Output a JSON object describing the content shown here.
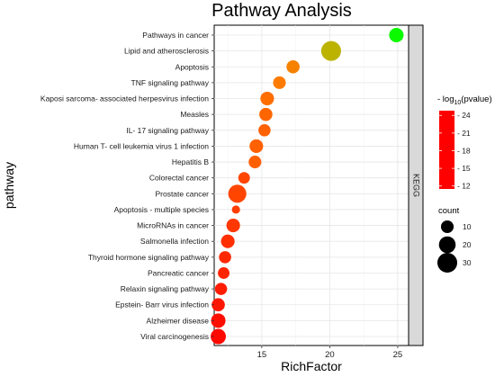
{
  "chart_data": {
    "type": "scatter",
    "title": "Pathway Analysis",
    "xlabel": "RichFactor",
    "ylabel": "pathway",
    "facet_label": "KEGG",
    "xlim": [
      11.5,
      25.8
    ],
    "xticks": [
      15,
      20,
      25
    ],
    "grid": true,
    "legend_placement": "right",
    "color_legend": {
      "title_prefix": "- log",
      "title_sub": "10",
      "title_suffix": "(pvalue)",
      "ticks": [
        12,
        15,
        18,
        21,
        24
      ],
      "range": [
        11.5,
        24.8
      ],
      "colors": [
        "#ff0000",
        "#ff7a00",
        "#b5b800",
        "#00ff00"
      ]
    },
    "size_legend": {
      "title": "count",
      "values": [
        10,
        20,
        30
      ]
    },
    "points": [
      {
        "pathway": "Pathways in cancer",
        "richfactor": 24.9,
        "neglog10p": 24.5,
        "count": 14
      },
      {
        "pathway": "Lipid and atherosclerosis",
        "richfactor": 20.1,
        "neglog10p": 20.0,
        "count": 30
      },
      {
        "pathway": "Apoptosis",
        "richfactor": 17.3,
        "neglog10p": 16.5,
        "count": 11
      },
      {
        "pathway": "TNF signaling pathway",
        "richfactor": 16.3,
        "neglog10p": 16.0,
        "count": 10
      },
      {
        "pathway": "Kaposi sarcoma- associated herpesvirus infection",
        "richfactor": 15.4,
        "neglog10p": 15.5,
        "count": 12
      },
      {
        "pathway": "Measles",
        "richfactor": 15.3,
        "neglog10p": 15.2,
        "count": 11
      },
      {
        "pathway": "IL- 17 signaling pathway",
        "richfactor": 15.2,
        "neglog10p": 15.0,
        "count": 9
      },
      {
        "pathway": "Human T- cell leukemia virus 1 infection",
        "richfactor": 14.6,
        "neglog10p": 15.0,
        "count": 12
      },
      {
        "pathway": "Hepatitis B",
        "richfactor": 14.5,
        "neglog10p": 15.0,
        "count": 10
      },
      {
        "pathway": "Colorectal cancer",
        "richfactor": 13.7,
        "neglog10p": 14.0,
        "count": 8
      },
      {
        "pathway": "Prostate cancer",
        "richfactor": 13.2,
        "neglog10p": 14.0,
        "count": 24
      },
      {
        "pathway": "Apoptosis -  multiple species",
        "richfactor": 13.1,
        "neglog10p": 13.7,
        "count": 3
      },
      {
        "pathway": "MicroRNAs in cancer",
        "richfactor": 12.9,
        "neglog10p": 13.5,
        "count": 12
      },
      {
        "pathway": "Salmonella infection",
        "richfactor": 12.5,
        "neglog10p": 13.2,
        "count": 12
      },
      {
        "pathway": "Thyroid hormone signaling pathway",
        "richfactor": 12.3,
        "neglog10p": 13.0,
        "count": 9
      },
      {
        "pathway": "Pancreatic cancer",
        "richfactor": 12.2,
        "neglog10p": 12.8,
        "count": 8
      },
      {
        "pathway": "Relaxin signaling pathway",
        "richfactor": 12.0,
        "neglog10p": 12.5,
        "count": 9
      },
      {
        "pathway": "Epstein- Barr virus infection",
        "richfactor": 11.8,
        "neglog10p": 12.3,
        "count": 11
      },
      {
        "pathway": "Alzheimer disease",
        "richfactor": 11.8,
        "neglog10p": 12.0,
        "count": 14
      },
      {
        "pathway": "Viral carcinogenesis",
        "richfactor": 11.8,
        "neglog10p": 11.8,
        "count": 16
      }
    ]
  }
}
